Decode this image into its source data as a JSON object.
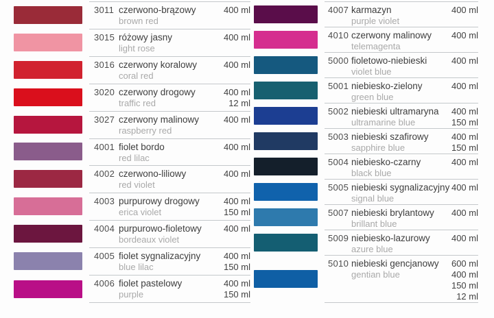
{
  "page": {
    "background": "#fdfdfd",
    "divider_color": "#c4c8cb"
  },
  "columns": [
    {
      "name": "left",
      "rows": [
        {
          "code": "3011",
          "name_pl": "czerwono-brązowy",
          "name_en": "brown red",
          "color": "#9a2b38",
          "volumes": [
            "400 ml"
          ]
        },
        {
          "code": "3015",
          "name_pl": "różowy jasny",
          "name_en": "light rose",
          "color": "#f094a3",
          "volumes": [
            "400 ml"
          ]
        },
        {
          "code": "3016",
          "name_pl": "czerwony koralowy",
          "name_en": "coral red",
          "color": "#d1222f",
          "volumes": [
            "400 ml"
          ]
        },
        {
          "code": "3020",
          "name_pl": "czerwony drogowy",
          "name_en": "traffic red",
          "color": "#da0f1c",
          "volumes": [
            "400 ml",
            "12 ml"
          ]
        },
        {
          "code": "3027",
          "name_pl": "czerwony malinowy",
          "name_en": "raspberry red",
          "color": "#b6163e",
          "volumes": [
            "400 ml"
          ]
        },
        {
          "code": "4001",
          "name_pl": "fiolet bordo",
          "name_en": "red lilac",
          "color": "#8a5c8b",
          "volumes": [
            "400 ml"
          ]
        },
        {
          "code": "4002",
          "name_pl": "czerwono-liliowy",
          "name_en": "red violet",
          "color": "#9c2843",
          "volumes": [
            "400 ml"
          ]
        },
        {
          "code": "4003",
          "name_pl": "purpurowy drogowy",
          "name_en": "erica violet",
          "color": "#d76e97",
          "volumes": [
            "400 ml",
            "150 ml"
          ]
        },
        {
          "code": "4004",
          "name_pl": "purpurowo-fioletowy",
          "name_en": "bordeaux violet",
          "color": "#6c163f",
          "volumes": [
            "400 ml"
          ]
        },
        {
          "code": "4005",
          "name_pl": "fiolet sygnalizacyjny",
          "name_en": "blue lilac",
          "color": "#8b82ad",
          "volumes": [
            "400 ml",
            "150 ml"
          ]
        },
        {
          "code": "4006",
          "name_pl": "fiolet pastelowy",
          "name_en": "purple",
          "color": "#b90f87",
          "volumes": [
            "400 ml",
            "150 ml"
          ]
        }
      ]
    },
    {
      "name": "right",
      "rows": [
        {
          "code": "4007",
          "name_pl": "karmazyn",
          "name_en": "purple violet",
          "color": "#5a0d4a",
          "volumes": [
            "400 ml"
          ]
        },
        {
          "code": "4010",
          "name_pl": "czerwony malinowy",
          "name_en": "telemagenta",
          "color": "#d52e8f",
          "volumes": [
            "400 ml"
          ]
        },
        {
          "code": "5000",
          "name_pl": "fioletowo-niebieski",
          "name_en": "violet blue",
          "color": "#15597f",
          "volumes": [
            "400 ml"
          ]
        },
        {
          "code": "5001",
          "name_pl": "niebiesko-zielony",
          "name_en": "green blue",
          "color": "#176070",
          "volumes": [
            "400 ml"
          ]
        },
        {
          "code": "5002",
          "name_pl": "niebieski ultramaryna",
          "name_en": "ultramarine blue",
          "color": "#1c3e92",
          "volumes": [
            "400 ml",
            "150 ml"
          ]
        },
        {
          "code": "5003",
          "name_pl": "niebieski szafirowy",
          "name_en": "sapphire blue",
          "color": "#203a63",
          "volumes": [
            "400 ml",
            "150 ml"
          ]
        },
        {
          "code": "5004",
          "name_pl": "niebiesko-czarny",
          "name_en": "black blue",
          "color": "#141f2b",
          "volumes": [
            "400 ml"
          ]
        },
        {
          "code": "5005",
          "name_pl": "niebieski sygnalizacyjny",
          "name_en": "signal blue",
          "color": "#1062ac",
          "volumes": [
            "400 ml"
          ]
        },
        {
          "code": "5007",
          "name_pl": "niebieski brylantowy",
          "name_en": "brillant blue",
          "color": "#2e7aad",
          "volumes": [
            "400 ml"
          ]
        },
        {
          "code": "5009",
          "name_pl": "niebiesko-lazurowy",
          "name_en": "azure blue",
          "color": "#145e72",
          "volumes": [
            "400 ml"
          ]
        },
        {
          "code": "5010",
          "name_pl": "niebieski gencjanowy",
          "name_en": "gentian blue",
          "color": "#0f5fa5",
          "volumes": [
            "600 ml",
            "400 ml",
            "150 ml",
            "12 ml"
          ]
        }
      ]
    }
  ]
}
